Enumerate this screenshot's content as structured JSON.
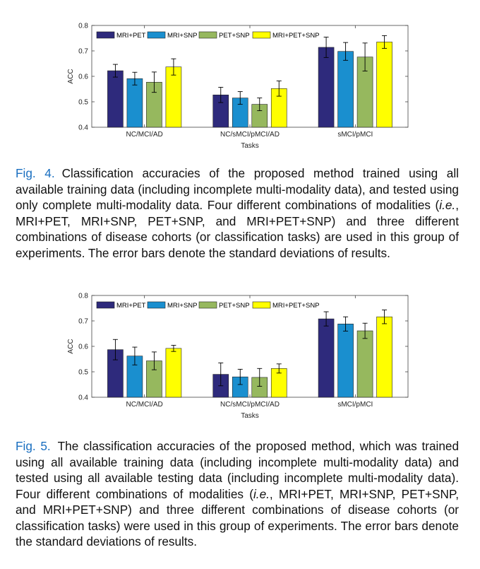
{
  "chart_data": [
    {
      "type": "bar",
      "categories": [
        "NC/MCI/AD",
        "NC/sMCI/pMCI/AD",
        "sMCI/pMCI"
      ],
      "series": [
        {
          "name": "MRI+PET",
          "color": "#2e2a7c",
          "values": [
            0.622,
            0.527,
            0.714
          ],
          "errors": [
            0.025,
            0.03,
            0.04
          ]
        },
        {
          "name": "MRI+SNP",
          "color": "#1a8fcf",
          "values": [
            0.591,
            0.515,
            0.698
          ],
          "errors": [
            0.025,
            0.025,
            0.035
          ]
        },
        {
          "name": "PET+SNP",
          "color": "#96b85e",
          "values": [
            0.577,
            0.49,
            0.676
          ],
          "errors": [
            0.04,
            0.025,
            0.055
          ]
        },
        {
          "name": "MRI+PET+SNP",
          "color": "#ffff00",
          "values": [
            0.637,
            0.552,
            0.735
          ],
          "errors": [
            0.032,
            0.03,
            0.025
          ]
        }
      ],
      "xlabel": "Tasks",
      "ylabel": "ACC",
      "ylim": [
        0.4,
        0.8
      ],
      "yticks": [
        "0.4",
        "0.5",
        "0.6",
        "0.7",
        "0.8"
      ],
      "legend_position": "top-left",
      "grid": false
    },
    {
      "type": "bar",
      "categories": [
        "NC/MCI/AD",
        "NC/sMCI/pMCI/AD",
        "sMCI/pMCI"
      ],
      "series": [
        {
          "name": "MRI+PET",
          "color": "#2e2a7c",
          "values": [
            0.587,
            0.49,
            0.708
          ],
          "errors": [
            0.04,
            0.045,
            0.028
          ]
        },
        {
          "name": "MRI+SNP",
          "color": "#1a8fcf",
          "values": [
            0.562,
            0.48,
            0.688
          ],
          "errors": [
            0.035,
            0.03,
            0.028
          ]
        },
        {
          "name": "PET+SNP",
          "color": "#96b85e",
          "values": [
            0.543,
            0.478,
            0.661
          ],
          "errors": [
            0.035,
            0.035,
            0.03
          ]
        },
        {
          "name": "MRI+PET+SNP",
          "color": "#ffff00",
          "values": [
            0.592,
            0.513,
            0.716
          ],
          "errors": [
            0.012,
            0.018,
            0.027
          ]
        }
      ],
      "xlabel": "Tasks",
      "ylabel": "ACC",
      "ylim": [
        0.4,
        0.8
      ],
      "yticks": [
        "0.4",
        "0.5",
        "0.6",
        "0.7",
        "0.8"
      ],
      "legend_position": "top-left",
      "grid": false
    }
  ],
  "captions": [
    {
      "label": "Fig. 4.",
      "p1": "Classification accuracies of the proposed method trained using all available training data (including incomplete multi-modality data), and tested using only complete multi-modality data. Four different combinations of modalities (",
      "ie": "i.e.",
      "p2": ", MRI+PET, MRI+SNP, PET+SNP, and MRI+PET+SNP) and three different combinations of disease cohorts (or classification tasks) are used in this group of experiments. The error bars denote the standard deviations of results."
    },
    {
      "label": "Fig. 5.",
      "p1": "The classification accuracies of the proposed method, which was trained using all available training data (including incomplete multi-modality data) and tested using all available testing data (including incomplete multi-modality data). Four different combinations of modalities (",
      "ie": "i.e.",
      "p2": ", MRI+PET, MRI+SNP, PET+SNP, and MRI+PET+SNP) and three different combinations of disease cohorts (or classification tasks) were used in this group of experiments. The error bars denote the standard deviations of results."
    }
  ]
}
